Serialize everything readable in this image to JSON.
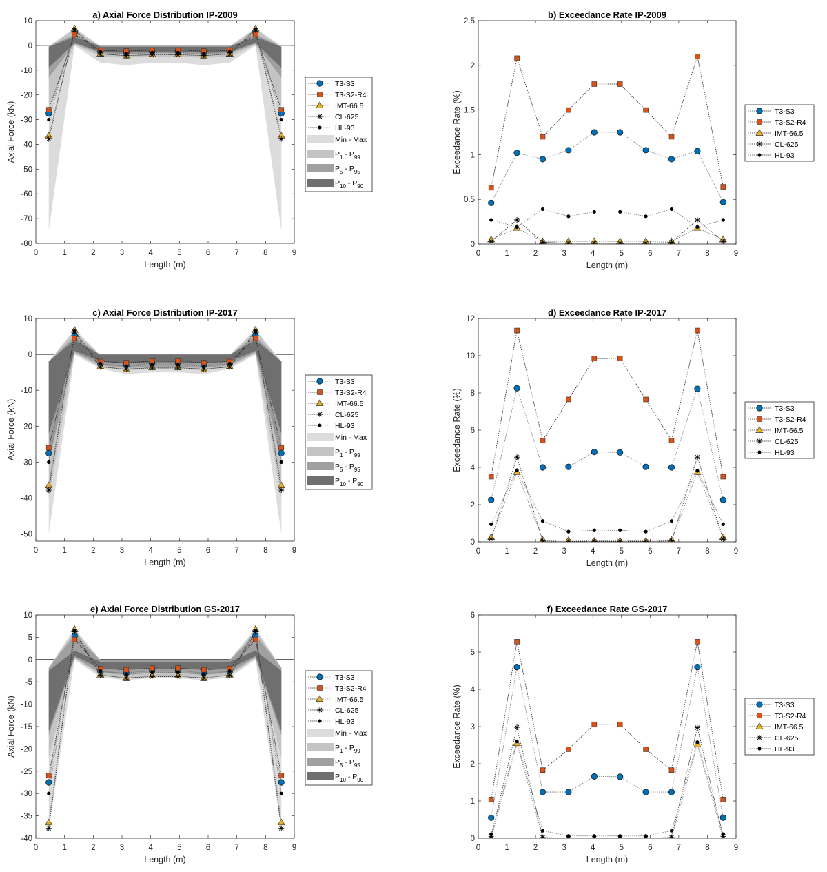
{
  "series_style": {
    "T3-S3": {
      "color": "#0072BD",
      "marker": "circle"
    },
    "T3-S2-R4": {
      "color": "#D95319",
      "marker": "square"
    },
    "IMT-66.5": {
      "color": "#EDB120",
      "marker": "triangle"
    },
    "CL-625": {
      "color": "#000000",
      "marker": "asterisk"
    },
    "HL-93": {
      "color": "#000000",
      "marker": "dot"
    }
  },
  "band_style": {
    "minmax": "#dcdcdc",
    "p1_99": "#c4c4c4",
    "p5_95": "#a0a0a0",
    "p10_90": "#6f6f6f"
  },
  "band_legend": [
    {
      "key": "minmax",
      "text": "Min - Max"
    },
    {
      "key": "p1_99",
      "p": "P",
      "lo": "1",
      "sep": " - ",
      "p2": "P",
      "hi": "99"
    },
    {
      "key": "p5_95",
      "p": "P",
      "lo": "5",
      "sep": " - ",
      "p2": "P",
      "hi": "95"
    },
    {
      "key": "p10_90",
      "p": "P",
      "lo": "10",
      "sep": " - ",
      "p2": "P",
      "hi": "90"
    }
  ],
  "chart_data": [
    {
      "type": "line",
      "title": "a) Axial Force Distribution  IP-2009",
      "xlabel": "Length (m)",
      "ylabel": "Axial Force (kN)",
      "xlim": [
        0,
        9
      ],
      "ylim": [
        -80,
        10
      ],
      "grid": false,
      "legend": "right",
      "xticks": [
        "0",
        "1",
        "2",
        "3",
        "4",
        "5",
        "6",
        "7",
        "8",
        "9"
      ],
      "yticks": [
        "10",
        "0",
        "-10",
        "-20",
        "-30",
        "-40",
        "-50",
        "-60",
        "-70",
        "-80"
      ],
      "x": [
        0.45,
        1.35,
        2.25,
        3.15,
        4.05,
        4.95,
        5.85,
        6.75,
        7.65,
        8.55
      ],
      "bands": {
        "minmax": {
          "lower": [
            -75,
            0,
            -7,
            -8,
            -7,
            -7,
            -8,
            -7,
            0,
            -75
          ],
          "upper": [
            -0.3,
            7,
            -0.2,
            -0.2,
            -0.2,
            -0.2,
            -0.2,
            -0.2,
            7,
            -0.3
          ]
        },
        "p1_99": {
          "lower": [
            -25,
            0.3,
            -4.5,
            -5,
            -4.5,
            -4.5,
            -5,
            -4.5,
            0.3,
            -25
          ],
          "upper": [
            -0.4,
            6.5,
            -0.3,
            -0.3,
            -0.3,
            -0.3,
            -0.3,
            -0.3,
            6.5,
            -0.4
          ]
        },
        "p5_95": {
          "lower": [
            -13,
            0.6,
            -3.2,
            -3.6,
            -3.2,
            -3.2,
            -3.6,
            -3.2,
            0.6,
            -13
          ],
          "upper": [
            -0.5,
            4.5,
            -0.4,
            -0.4,
            -0.4,
            -0.4,
            -0.4,
            -0.4,
            4.5,
            -0.5
          ]
        },
        "p10_90": {
          "lower": [
            -9,
            1,
            -2.5,
            -2.9,
            -2.5,
            -2.5,
            -2.9,
            -2.5,
            1,
            -9
          ],
          "upper": [
            -0.6,
            3.5,
            -0.5,
            -0.5,
            -0.5,
            -0.5,
            -0.5,
            -0.5,
            3.5,
            -0.6
          ]
        }
      },
      "series": [
        {
          "name": "T3-S3",
          "values": [
            -27.5,
            5.3,
            -2.7,
            -3.0,
            -2.5,
            -2.5,
            -3.0,
            -2.7,
            5.3,
            -27.5
          ]
        },
        {
          "name": "T3-S2-R4",
          "values": [
            -26,
            4.5,
            -2.0,
            -2.3,
            -1.9,
            -1.9,
            -2.3,
            -2.0,
            4.5,
            -26
          ]
        },
        {
          "name": "IMT-66.5",
          "values": [
            -36.5,
            6.8,
            -3.4,
            -4.2,
            -3.6,
            -3.6,
            -4.2,
            -3.4,
            6.8,
            -36.5
          ]
        },
        {
          "name": "CL-625",
          "values": [
            -37.8,
            6.2,
            -3.5,
            -4.1,
            -3.8,
            -3.8,
            -4.1,
            -3.5,
            6.2,
            -37.8
          ]
        },
        {
          "name": "HL-93",
          "values": [
            -30,
            6.5,
            -2.6,
            -3.3,
            -2.9,
            -2.9,
            -3.3,
            -2.6,
            6.5,
            -30
          ]
        }
      ]
    },
    {
      "type": "line",
      "title": "b) Exceedance Rate  IP-2009",
      "xlabel": "Length (m)",
      "ylabel": "Exceedance Rate (%)",
      "xlim": [
        0,
        9
      ],
      "ylim": [
        0,
        2.5
      ],
      "grid": false,
      "legend": "right",
      "xticks": [
        "0",
        "1",
        "2",
        "3",
        "4",
        "5",
        "6",
        "7",
        "8",
        "9"
      ],
      "yticks": [
        "2.5",
        "2",
        "1.5",
        "1",
        "0.5",
        "0"
      ],
      "x": [
        0.45,
        1.35,
        2.25,
        3.15,
        4.05,
        4.95,
        5.85,
        6.75,
        7.65,
        8.55
      ],
      "series": [
        {
          "name": "T3-S3",
          "values": [
            0.46,
            1.02,
            0.95,
            1.05,
            1.25,
            1.25,
            1.05,
            0.95,
            1.04,
            0.47
          ]
        },
        {
          "name": "T3-S2-R4",
          "values": [
            0.63,
            2.08,
            1.2,
            1.5,
            1.79,
            1.79,
            1.5,
            1.2,
            2.1,
            0.64
          ]
        },
        {
          "name": "IMT-66.5",
          "values": [
            0.05,
            0.18,
            0.03,
            0.03,
            0.03,
            0.03,
            0.03,
            0.03,
            0.18,
            0.05
          ]
        },
        {
          "name": "CL-625",
          "values": [
            0.03,
            0.27,
            0.02,
            0.01,
            0.01,
            0.01,
            0.01,
            0.02,
            0.27,
            0.03
          ]
        },
        {
          "name": "HL-93",
          "values": [
            0.27,
            0.19,
            0.39,
            0.31,
            0.36,
            0.36,
            0.31,
            0.39,
            0.19,
            0.27
          ]
        }
      ]
    },
    {
      "type": "line",
      "title": "c) Axial Force Distribution  IP-2017",
      "xlabel": "Length (m)",
      "ylabel": "Axial Force (kN)",
      "xlim": [
        0,
        9
      ],
      "ylim": [
        -52,
        10
      ],
      "grid": false,
      "legend": "right",
      "xticks": [
        "0",
        "1",
        "2",
        "3",
        "4",
        "5",
        "6",
        "7",
        "8",
        "9"
      ],
      "yticks": [
        "10",
        "0",
        "-10",
        "-20",
        "-30",
        "-40",
        "-50"
      ],
      "ytick_values": [
        10,
        0,
        -10,
        -20,
        -30,
        -40,
        -50
      ],
      "x": [
        0.45,
        1.35,
        2.25,
        3.15,
        4.05,
        4.95,
        5.85,
        6.75,
        7.65,
        8.55
      ],
      "bands": {
        "minmax": {
          "lower": [
            -50,
            0,
            -4,
            -5.5,
            -5,
            -5,
            -5.5,
            -4,
            0,
            -50
          ],
          "upper": [
            -2,
            7,
            -0.2,
            -0.2,
            -0.2,
            -0.2,
            -0.2,
            -0.2,
            7,
            -2
          ]
        },
        "p1_99": {
          "lower": [
            -40,
            0.3,
            -3.5,
            -4.5,
            -4,
            -4,
            -4.5,
            -3.5,
            0.3,
            -40
          ],
          "upper": [
            -2,
            6.5,
            -0.2,
            -0.2,
            -0.2,
            -0.2,
            -0.2,
            -0.2,
            6.5,
            -2
          ]
        },
        "p5_95": {
          "lower": [
            -30,
            0.6,
            -3,
            -3.8,
            -3.5,
            -3.5,
            -3.8,
            -3,
            0.6,
            -30
          ],
          "upper": [
            -2,
            5,
            -0.2,
            -0.2,
            -0.2,
            -0.2,
            -0.2,
            -0.2,
            5,
            -2
          ]
        },
        "p10_90": {
          "lower": [
            -22,
            1,
            -2,
            -2.5,
            -2.2,
            -2.2,
            -2.5,
            -2,
            1,
            -22
          ],
          "upper": [
            -2,
            4,
            -0.2,
            -0.2,
            -0.2,
            -0.2,
            -0.2,
            -0.2,
            4,
            -2
          ]
        }
      },
      "series": [
        {
          "name": "T3-S3",
          "values": [
            -27.5,
            5.3,
            -2.7,
            -3.0,
            -2.5,
            -2.5,
            -3.0,
            -2.7,
            5.3,
            -27.5
          ]
        },
        {
          "name": "T3-S2-R4",
          "values": [
            -26,
            4.5,
            -2.0,
            -2.3,
            -1.9,
            -1.9,
            -2.3,
            -2.0,
            4.5,
            -26
          ]
        },
        {
          "name": "IMT-66.5",
          "values": [
            -36.5,
            6.8,
            -3.4,
            -4.2,
            -3.6,
            -3.6,
            -4.2,
            -3.4,
            6.8,
            -36.5
          ]
        },
        {
          "name": "CL-625",
          "values": [
            -37.8,
            6.2,
            -3.5,
            -4.1,
            -3.8,
            -3.8,
            -4.1,
            -3.5,
            6.2,
            -37.8
          ]
        },
        {
          "name": "HL-93",
          "values": [
            -30,
            6.5,
            -2.6,
            -3.3,
            -2.9,
            -2.9,
            -3.3,
            -2.6,
            6.5,
            -30
          ]
        }
      ]
    },
    {
      "type": "line",
      "title": "d) Exceedance Rate  IP-2017",
      "xlabel": "Length (m)",
      "ylabel": "Exceedance Rate (%)",
      "xlim": [
        0,
        9
      ],
      "ylim": [
        0,
        12
      ],
      "grid": false,
      "legend": "right",
      "xticks": [
        "0",
        "1",
        "2",
        "3",
        "4",
        "5",
        "6",
        "7",
        "8",
        "9"
      ],
      "yticks": [
        "12",
        "10",
        "8",
        "6",
        "4",
        "2",
        "0"
      ],
      "x": [
        0.45,
        1.35,
        2.25,
        3.15,
        4.05,
        4.95,
        5.85,
        6.75,
        7.65,
        8.55
      ],
      "series": [
        {
          "name": "T3-S3",
          "values": [
            2.25,
            8.25,
            4.0,
            4.03,
            4.83,
            4.8,
            4.03,
            4.0,
            8.22,
            2.25
          ]
        },
        {
          "name": "T3-S2-R4",
          "values": [
            3.5,
            11.35,
            5.45,
            7.65,
            9.85,
            9.85,
            7.65,
            5.45,
            11.35,
            3.5
          ]
        },
        {
          "name": "IMT-66.5",
          "values": [
            0.25,
            3.75,
            0.1,
            0.08,
            0.05,
            0.05,
            0.05,
            0.1,
            3.75,
            0.25
          ]
        },
        {
          "name": "CL-625",
          "values": [
            0.15,
            4.55,
            0.05,
            0.02,
            0.02,
            0.02,
            0.02,
            0.05,
            4.55,
            0.15
          ]
        },
        {
          "name": "HL-93",
          "values": [
            0.95,
            3.85,
            1.12,
            0.55,
            0.62,
            0.62,
            0.55,
            1.12,
            3.82,
            0.95
          ]
        }
      ]
    },
    {
      "type": "line",
      "title": "e) Axial Force Distribution  GS-2017",
      "xlabel": "Length (m)",
      "ylabel": "Axial Force (kN)",
      "xlim": [
        0,
        9
      ],
      "ylim": [
        -40,
        10
      ],
      "grid": false,
      "legend": "right",
      "xticks": [
        "0",
        "1",
        "2",
        "3",
        "4",
        "5",
        "6",
        "7",
        "8",
        "9"
      ],
      "yticks": [
        "10",
        "5",
        "0",
        "-5",
        "-10",
        "-15",
        "-20",
        "-25",
        "-30",
        "-35",
        "-40"
      ],
      "x": [
        0.45,
        1.35,
        2.25,
        3.15,
        4.05,
        4.95,
        5.85,
        6.75,
        7.65,
        8.55
      ],
      "bands": {
        "minmax": {
          "lower": [
            -38,
            0,
            -4,
            -4.6,
            -4.2,
            -4.2,
            -4.6,
            -4,
            0,
            -38
          ],
          "upper": [
            -1.8,
            7,
            -0.1,
            -0.1,
            -0.1,
            -0.1,
            -0.1,
            -0.1,
            7,
            -1.8
          ]
        },
        "p1_99": {
          "lower": [
            -22,
            0.3,
            -3.5,
            -4,
            -3.6,
            -3.6,
            -4,
            -3.5,
            0.3,
            -22
          ],
          "upper": [
            -1.8,
            6.5,
            -0.1,
            -0.1,
            -0.1,
            -0.1,
            -0.1,
            -0.1,
            6.5,
            -1.8
          ]
        },
        "p5_95": {
          "lower": [
            -17,
            0.5,
            -3,
            -3.4,
            -3,
            -3,
            -3.4,
            -3,
            0.5,
            -17
          ],
          "upper": [
            -1.8,
            5.5,
            -0.1,
            -0.1,
            -0.1,
            -0.1,
            -0.1,
            -0.1,
            5.5,
            -1.8
          ]
        },
        "p10_90": {
          "lower": [
            -16,
            0.8,
            -2,
            -2.2,
            -2,
            -2,
            -2.2,
            -2,
            0.8,
            -16
          ],
          "upper": [
            -2.5,
            2,
            -0.5,
            -0.5,
            -0.5,
            -0.5,
            -0.5,
            -0.5,
            2,
            -2.5
          ]
        }
      },
      "series": [
        {
          "name": "T3-S3",
          "values": [
            -27.5,
            5.3,
            -2.7,
            -3.0,
            -2.5,
            -2.5,
            -3.0,
            -2.7,
            5.3,
            -27.5
          ]
        },
        {
          "name": "T3-S2-R4",
          "values": [
            -26,
            4.5,
            -2.0,
            -2.3,
            -1.9,
            -1.9,
            -2.3,
            -2.0,
            4.5,
            -26
          ]
        },
        {
          "name": "IMT-66.5",
          "values": [
            -36.5,
            6.8,
            -3.4,
            -4.2,
            -3.6,
            -3.6,
            -4.2,
            -3.4,
            6.8,
            -36.5
          ]
        },
        {
          "name": "CL-625",
          "values": [
            -37.8,
            6.2,
            -3.5,
            -4.1,
            -3.8,
            -3.8,
            -4.1,
            -3.5,
            6.2,
            -37.8
          ]
        },
        {
          "name": "HL-93",
          "values": [
            -30,
            6.5,
            -2.6,
            -3.3,
            -2.9,
            -2.9,
            -3.3,
            -2.6,
            6.5,
            -30
          ]
        }
      ]
    },
    {
      "type": "line",
      "title": "f) Exceedance Rate  GS-2017",
      "xlabel": "Length (m)",
      "ylabel": "Exceedance Rate (%)",
      "xlim": [
        0,
        9
      ],
      "ylim": [
        0,
        6
      ],
      "grid": false,
      "legend": "right",
      "xticks": [
        "0",
        "1",
        "2",
        "3",
        "4",
        "5",
        "6",
        "7",
        "8",
        "9"
      ],
      "yticks": [
        "6",
        "5",
        "4",
        "3",
        "2",
        "1",
        "0"
      ],
      "x": [
        0.45,
        1.35,
        2.25,
        3.15,
        4.05,
        4.95,
        5.85,
        6.75,
        7.65,
        8.55
      ],
      "series": [
        {
          "name": "T3-S3",
          "values": [
            0.55,
            4.6,
            1.24,
            1.24,
            1.66,
            1.65,
            1.24,
            1.24,
            4.6,
            0.55
          ]
        },
        {
          "name": "T3-S2-R4",
          "values": [
            1.04,
            5.28,
            1.83,
            2.39,
            3.06,
            3.06,
            2.39,
            1.83,
            5.28,
            1.04
          ]
        },
        {
          "name": "IMT-66.5",
          "values": [
            0,
            2.55,
            0,
            0,
            0,
            0,
            0,
            0,
            2.52,
            0
          ]
        },
        {
          "name": "CL-625",
          "values": [
            0.05,
            2.98,
            0.02,
            0,
            0,
            0,
            0,
            0.02,
            2.97,
            0.05
          ]
        },
        {
          "name": "HL-93",
          "values": [
            0.11,
            2.6,
            0.2,
            0.06,
            0.06,
            0.06,
            0.06,
            0.2,
            2.58,
            0.11
          ]
        }
      ]
    }
  ]
}
